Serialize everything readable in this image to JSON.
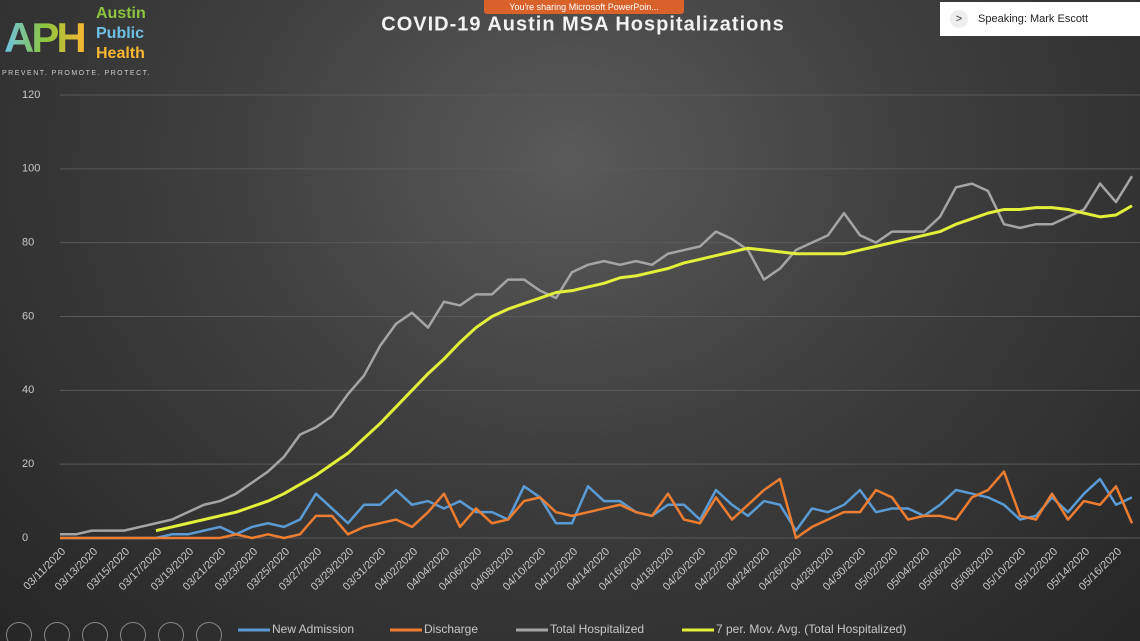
{
  "logo": {
    "mark": "APH",
    "name": [
      "Austin",
      "Public",
      "Health"
    ],
    "tagline": "PREVENT. PROMOTE. PROTECT."
  },
  "sharing_banner": "You're sharing Microsoft PowerPoin...",
  "speaker": "Speaking: Mark Escott",
  "chart_data": {
    "type": "line",
    "title": "COVID-19 Austin MSA Hospitalizations",
    "categories": [
      "03/11/2020",
      null,
      "03/13/2020",
      null,
      "03/15/2020",
      null,
      "03/17/2020",
      null,
      "03/19/2020",
      null,
      "03/21/2020",
      null,
      "03/23/2020",
      null,
      "03/25/2020",
      null,
      "03/27/2020",
      null,
      "03/29/2020",
      null,
      "03/31/2020",
      null,
      "04/02/2020",
      null,
      "04/04/2020",
      null,
      "04/06/2020",
      null,
      "04/08/2020",
      null,
      "04/10/2020",
      null,
      "04/12/2020",
      null,
      "04/14/2020",
      null,
      "04/16/2020",
      null,
      "04/18/2020",
      null,
      "04/20/2020",
      null,
      "04/22/2020",
      null,
      "04/24/2020",
      null,
      "04/26/2020",
      null,
      "04/28/2020",
      null,
      "04/30/2020",
      null,
      "05/02/2020",
      null,
      "05/04/2020",
      null,
      "05/06/2020",
      null,
      "05/08/2020",
      null,
      "05/10/2020",
      null,
      "05/12/2020",
      null,
      "05/14/2020",
      null,
      "05/16/2020",
      null
    ],
    "series": [
      {
        "name": "New Admission",
        "color": "#5b9bd5",
        "values": [
          0,
          0,
          0,
          0,
          0,
          0,
          0,
          1,
          1,
          2,
          3,
          1,
          3,
          4,
          3,
          5,
          12,
          8,
          4,
          9,
          9,
          13,
          9,
          10,
          8,
          10,
          7,
          7,
          5,
          14,
          11,
          4,
          4,
          14,
          10,
          10,
          7,
          6,
          9,
          9,
          5,
          13,
          9,
          6,
          10,
          9,
          2,
          8,
          7,
          9,
          13,
          7,
          8,
          8,
          6,
          9,
          13,
          12,
          11,
          9,
          5,
          6,
          11,
          7,
          12,
          16,
          9,
          11
        ]
      },
      {
        "name": "Discharge",
        "color": "#ed7d31",
        "values": [
          0,
          0,
          0,
          0,
          0,
          0,
          0,
          0,
          0,
          0,
          0,
          1,
          0,
          1,
          0,
          1,
          6,
          6,
          1,
          3,
          4,
          5,
          3,
          7,
          12,
          3,
          8,
          4,
          5,
          10,
          11,
          7,
          6,
          7,
          8,
          9,
          7,
          6,
          12,
          5,
          4,
          11,
          5,
          9,
          13,
          16,
          0,
          3,
          5,
          7,
          7,
          13,
          11,
          5,
          6,
          6,
          5,
          11,
          13,
          18,
          6,
          5,
          12,
          5,
          10,
          9,
          14,
          4
        ]
      },
      {
        "name": "Total Hospitalized",
        "color": "#a5a5a5",
        "values": [
          1,
          1,
          2,
          2,
          2,
          3,
          4,
          5,
          7,
          9,
          10,
          12,
          15,
          18,
          22,
          28,
          30,
          33,
          39,
          44,
          52,
          58,
          61,
          57,
          64,
          63,
          66,
          66,
          70,
          70,
          67,
          65,
          72,
          74,
          75,
          74,
          75,
          74,
          77,
          78,
          79,
          83,
          81,
          78,
          70,
          73,
          78,
          80,
          82,
          88,
          82,
          80,
          83,
          83,
          83,
          87,
          95,
          96,
          94,
          85,
          84,
          85,
          85,
          87,
          89,
          96,
          91,
          98
        ]
      },
      {
        "name": "7 per. Mov. Avg. (Total Hospitalized)",
        "color": "#e3f03a",
        "values": [
          null,
          null,
          null,
          null,
          null,
          null,
          2,
          3,
          4,
          5,
          6,
          7,
          8.5,
          10,
          12,
          14.5,
          17,
          20,
          23,
          27,
          31,
          35.5,
          40,
          44.5,
          48.5,
          53,
          57,
          60,
          62,
          63.5,
          65,
          66.5,
          67,
          68,
          69,
          70.5,
          71,
          72,
          73,
          74.5,
          75.5,
          76.5,
          77.5,
          78.5,
          78,
          77.5,
          77,
          77,
          77,
          77,
          78,
          79,
          80,
          81,
          82,
          83,
          85,
          86.5,
          88,
          89,
          89,
          89.5,
          89.5,
          89,
          88,
          87,
          87.5,
          90
        ]
      }
    ],
    "ylim": [
      0,
      120
    ],
    "yticks": [
      0,
      20,
      40,
      60,
      80,
      100,
      120
    ],
    "grid": true
  }
}
